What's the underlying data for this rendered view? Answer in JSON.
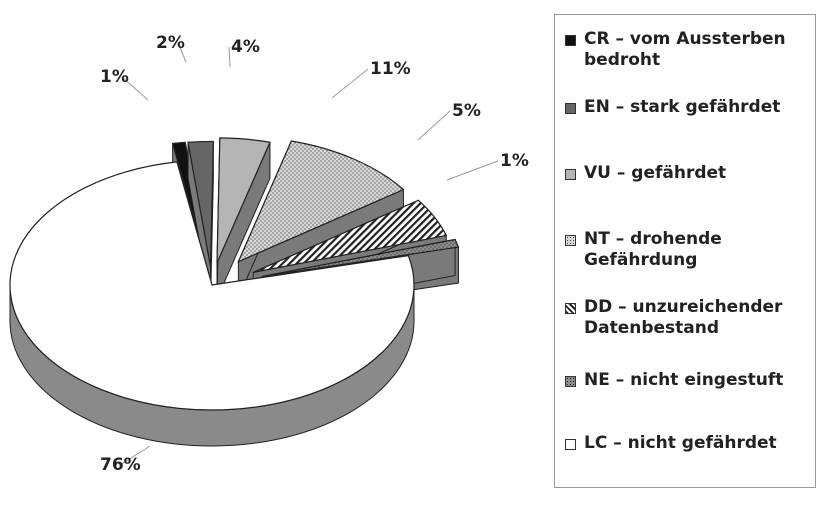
{
  "chart_data": {
    "type": "pie",
    "title": "",
    "style": "exploded-3d",
    "slices": [
      {
        "label": "CR – vom Aussterben bedroht",
        "value": 1,
        "value_label": "1%",
        "color": "#111111",
        "pattern": "solid"
      },
      {
        "label": "EN – stark gefährdet",
        "value": 2,
        "value_label": "2%",
        "color": "#666666",
        "pattern": "solid"
      },
      {
        "label": "VU – gefährdet",
        "value": 4,
        "value_label": "4%",
        "color": "#b5b5b5",
        "pattern": "solid"
      },
      {
        "label": "NT – drohende Gefährdung",
        "value": 11,
        "value_label": "11%",
        "color": "#cfcfcf",
        "pattern": "dots-light"
      },
      {
        "label": "DD – unzureichender Datenbestand",
        "value": 5,
        "value_label": "5%",
        "color": "#5a5a5a",
        "pattern": "diagonal"
      },
      {
        "label": "NE – nicht eingestuft",
        "value": 1,
        "value_label": "1%",
        "color": "#9a9a9a",
        "pattern": "dots-dark"
      },
      {
        "label": "LC – nicht gefährdet",
        "value": 76,
        "value_label": "76%",
        "color": "#ffffff",
        "pattern": "solid"
      }
    ],
    "legend_position": "right"
  }
}
